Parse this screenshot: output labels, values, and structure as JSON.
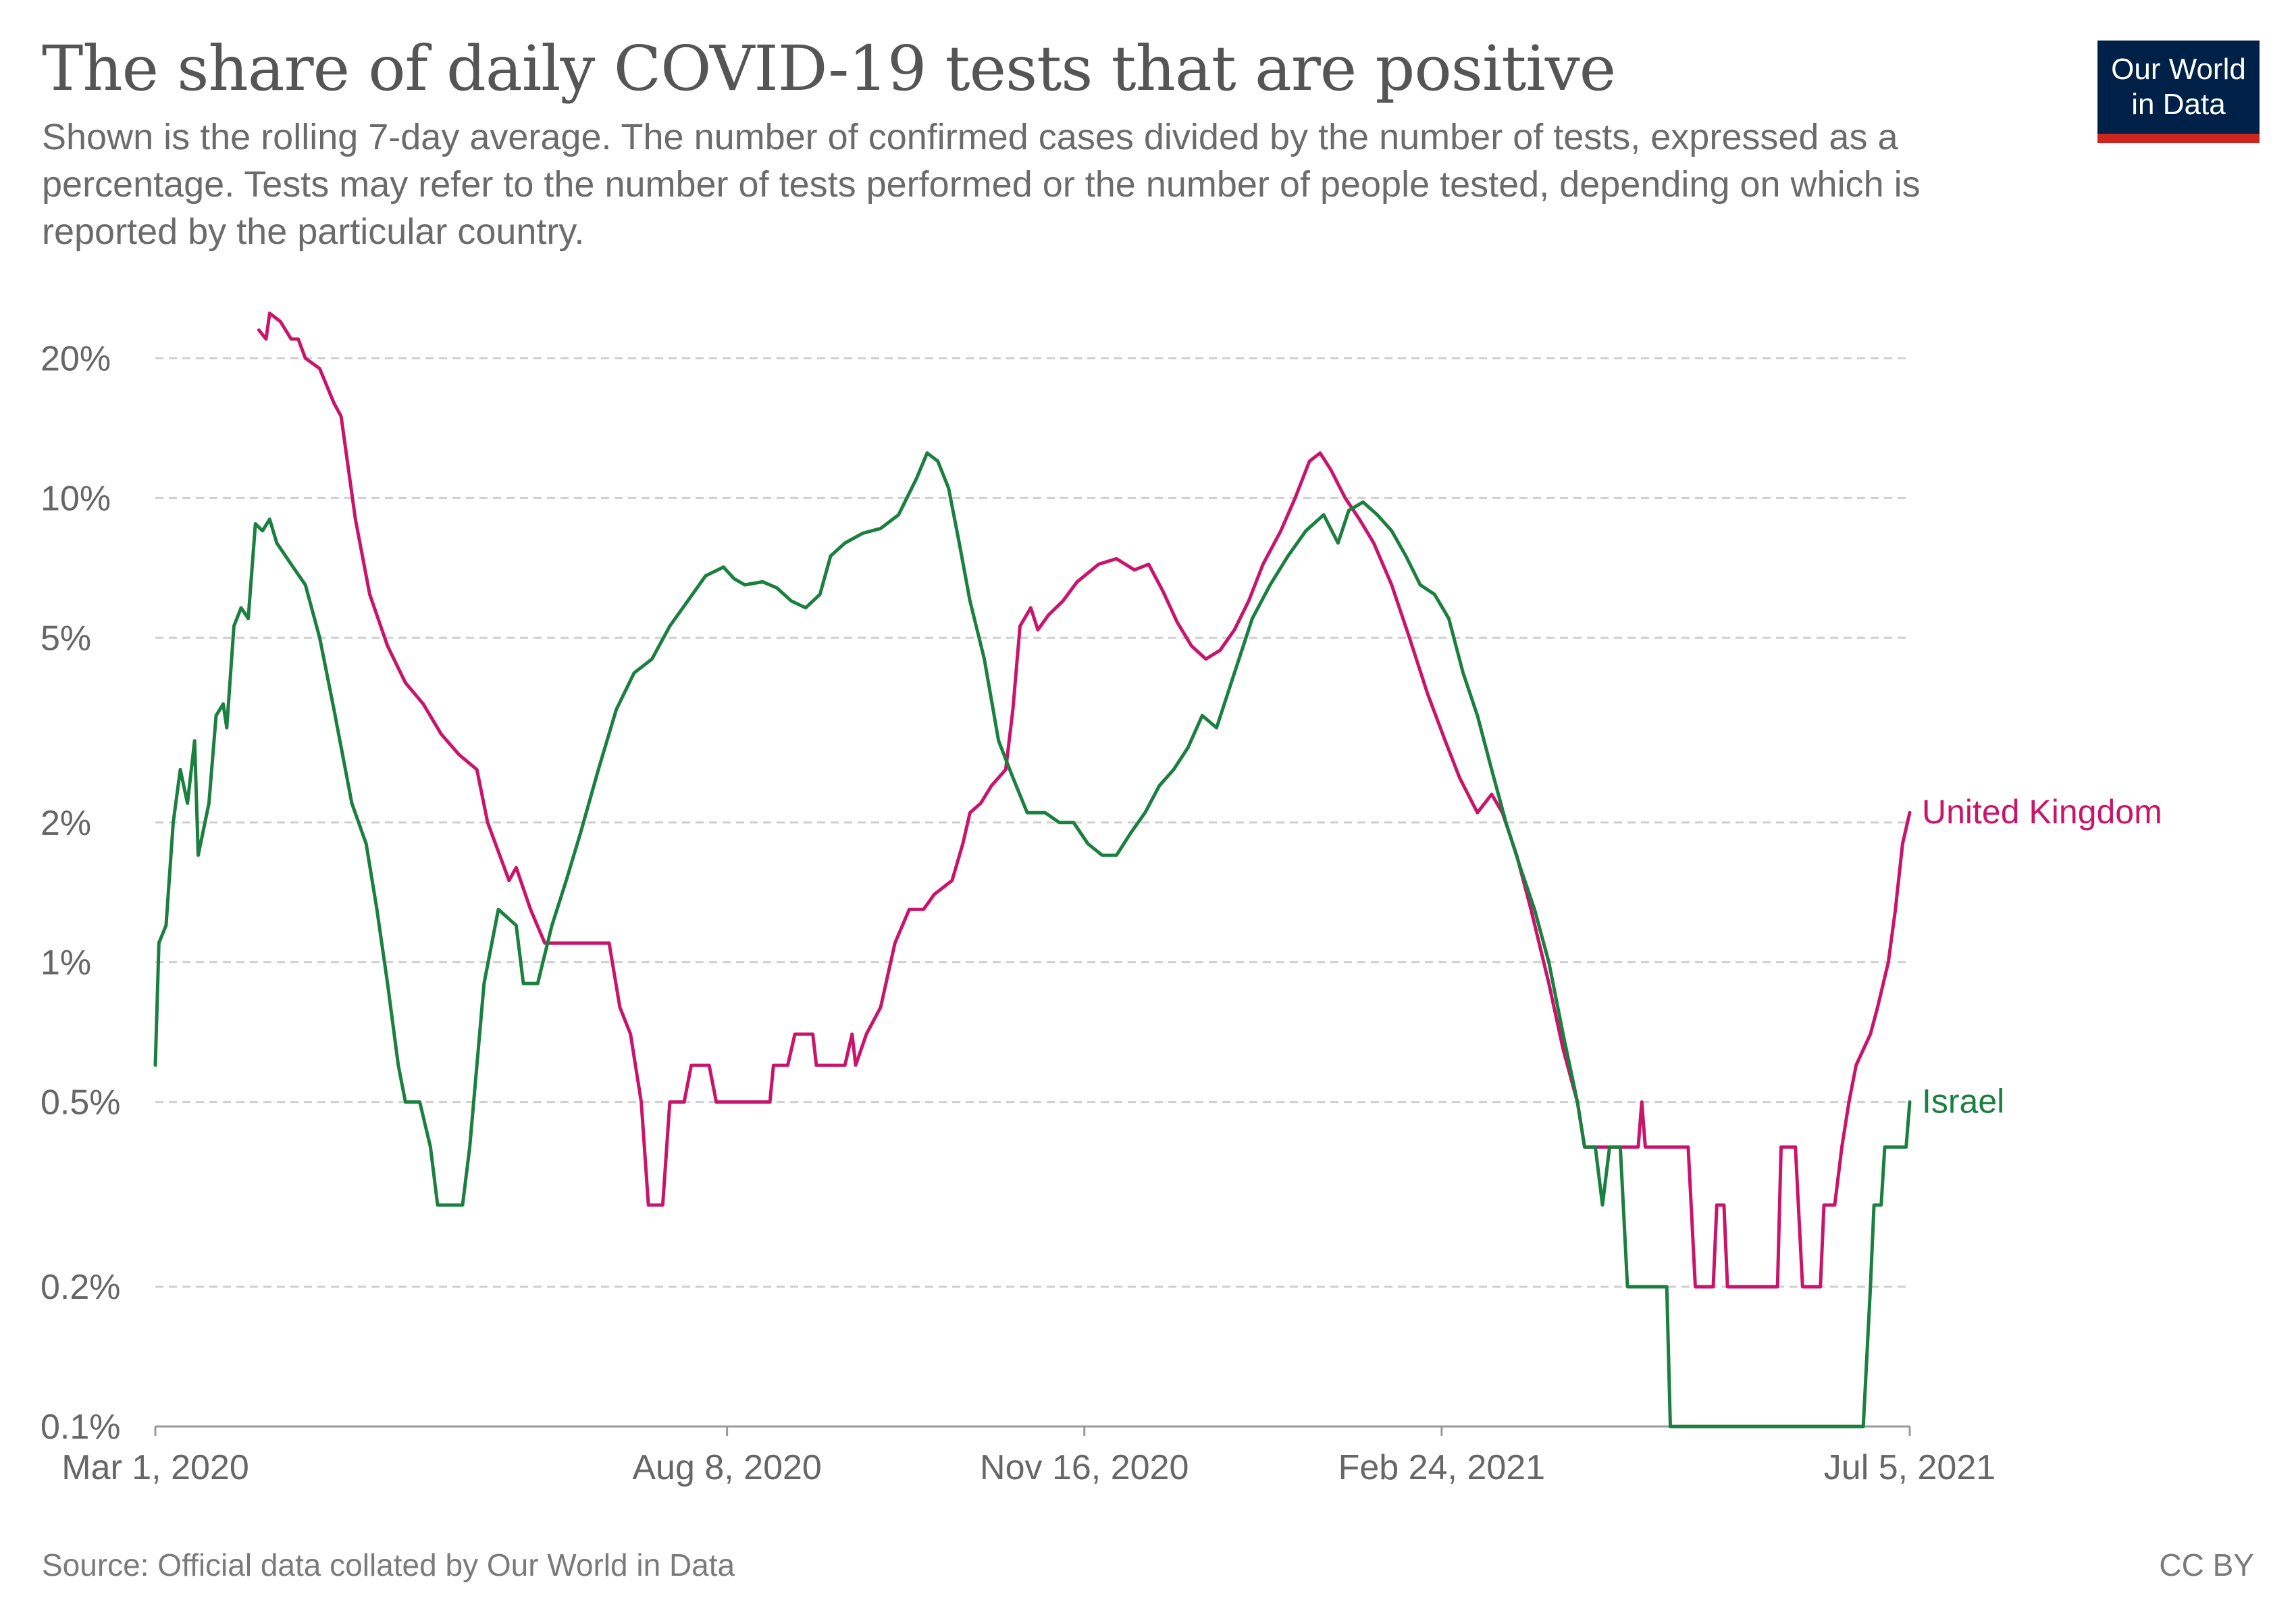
{
  "header": {
    "title": "The share of daily COVID-19 tests that are positive",
    "subtitle": "Shown is the rolling 7-day average. The number of confirmed cases divided by the number of tests, expressed as a percentage. Tests may refer to the number of tests performed or the number of people tested, depending on which is reported by the particular country.",
    "logo_line1": "Our World",
    "logo_line2": "in Data"
  },
  "footer": {
    "source": "Source: Official data collated by Our World in Data",
    "license": "CC BY"
  },
  "colors": {
    "united_kingdom": "#c8156b",
    "israel": "#1a7f3f",
    "grid": "#cfcfcf",
    "axis_text": "#666666",
    "logo_bg": "#002147",
    "logo_accent": "#ce261e"
  },
  "chart_data": {
    "type": "line",
    "title": "The share of daily COVID-19 tests that are positive",
    "xlabel": "",
    "ylabel": "",
    "y_scale": "log",
    "ylim": [
      0.1,
      28
    ],
    "xlim": [
      "2020-03-01",
      "2021-07-05"
    ],
    "y_ticks": [
      0.1,
      0.2,
      0.5,
      1,
      2,
      5,
      10,
      20
    ],
    "y_tick_labels": [
      "0.1%",
      "0.2%",
      "0.5%",
      "1%",
      "2%",
      "5%",
      "10%",
      "20%"
    ],
    "x_ticks": [
      "2020-03-01",
      "2020-08-08",
      "2020-11-16",
      "2021-02-24",
      "2021-07-05"
    ],
    "x_tick_labels": [
      "Mar 1, 2020",
      "Aug 8, 2020",
      "Nov 16, 2020",
      "Feb 24, 2021",
      "Jul 5, 2021"
    ],
    "grid": true,
    "legend": "inline labels at line ends",
    "series": [
      {
        "name": "United Kingdom",
        "color": "#c8156b",
        "points": [
          [
            "2020-03-30",
            23
          ],
          [
            "2020-04-01",
            22
          ],
          [
            "2020-04-02",
            25
          ],
          [
            "2020-04-05",
            24
          ],
          [
            "2020-04-08",
            22
          ],
          [
            "2020-04-10",
            22
          ],
          [
            "2020-04-12",
            20
          ],
          [
            "2020-04-16",
            19
          ],
          [
            "2020-04-20",
            16
          ],
          [
            "2020-04-22",
            15
          ],
          [
            "2020-04-26",
            9
          ],
          [
            "2020-04-30",
            6.2
          ],
          [
            "2020-05-05",
            4.8
          ],
          [
            "2020-05-10",
            4
          ],
          [
            "2020-05-15",
            3.6
          ],
          [
            "2020-05-20",
            3.1
          ],
          [
            "2020-05-25",
            2.8
          ],
          [
            "2020-05-30",
            2.6
          ],
          [
            "2020-06-02",
            2
          ],
          [
            "2020-06-08",
            1.5
          ],
          [
            "2020-06-10",
            1.6
          ],
          [
            "2020-06-14",
            1.3
          ],
          [
            "2020-06-18",
            1.1
          ],
          [
            "2020-06-22",
            1.1
          ],
          [
            "2020-06-30",
            1.1
          ],
          [
            "2020-07-06",
            1.1
          ],
          [
            "2020-07-09",
            0.8
          ],
          [
            "2020-07-12",
            0.7
          ],
          [
            "2020-07-15",
            0.5
          ],
          [
            "2020-07-17",
            0.3
          ],
          [
            "2020-07-21",
            0.3
          ],
          [
            "2020-07-23",
            0.5
          ],
          [
            "2020-07-27",
            0.5
          ],
          [
            "2020-07-29",
            0.6
          ],
          [
            "2020-08-03",
            0.6
          ],
          [
            "2020-08-05",
            0.5
          ],
          [
            "2020-08-20",
            0.5
          ],
          [
            "2020-08-21",
            0.6
          ],
          [
            "2020-08-25",
            0.6
          ],
          [
            "2020-08-27",
            0.7
          ],
          [
            "2020-09-01",
            0.7
          ],
          [
            "2020-09-02",
            0.6
          ],
          [
            "2020-09-10",
            0.6
          ],
          [
            "2020-09-12",
            0.7
          ],
          [
            "2020-09-13",
            0.6
          ],
          [
            "2020-09-16",
            0.7
          ],
          [
            "2020-09-20",
            0.8
          ],
          [
            "2020-09-24",
            1.1
          ],
          [
            "2020-09-28",
            1.3
          ],
          [
            "2020-10-02",
            1.3
          ],
          [
            "2020-10-05",
            1.4
          ],
          [
            "2020-10-10",
            1.5
          ],
          [
            "2020-10-13",
            1.8
          ],
          [
            "2020-10-15",
            2.1
          ],
          [
            "2020-10-18",
            2.2
          ],
          [
            "2020-10-21",
            2.4
          ],
          [
            "2020-10-25",
            2.6
          ],
          [
            "2020-10-27",
            3.5
          ],
          [
            "2020-10-29",
            5.3
          ],
          [
            "2020-11-01",
            5.8
          ],
          [
            "2020-11-03",
            5.2
          ],
          [
            "2020-11-06",
            5.6
          ],
          [
            "2020-11-10",
            6
          ],
          [
            "2020-11-14",
            6.6
          ],
          [
            "2020-11-20",
            7.2
          ],
          [
            "2020-11-25",
            7.4
          ],
          [
            "2020-11-30",
            7
          ],
          [
            "2020-12-04",
            7.2
          ],
          [
            "2020-12-08",
            6.3
          ],
          [
            "2020-12-12",
            5.4
          ],
          [
            "2020-12-16",
            4.8
          ],
          [
            "2020-12-20",
            4.5
          ],
          [
            "2020-12-24",
            4.7
          ],
          [
            "2020-12-28",
            5.2
          ],
          [
            "2021-01-01",
            6
          ],
          [
            "2021-01-05",
            7.2
          ],
          [
            "2021-01-10",
            8.5
          ],
          [
            "2021-01-14",
            10
          ],
          [
            "2021-01-18",
            12
          ],
          [
            "2021-01-21",
            12.5
          ],
          [
            "2021-01-24",
            11.5
          ],
          [
            "2021-01-28",
            10
          ],
          [
            "2021-02-01",
            9
          ],
          [
            "2021-02-05",
            8
          ],
          [
            "2021-02-10",
            6.5
          ],
          [
            "2021-02-15",
            5
          ],
          [
            "2021-02-20",
            3.8
          ],
          [
            "2021-02-25",
            3
          ],
          [
            "2021-03-01",
            2.5
          ],
          [
            "2021-03-06",
            2.1
          ],
          [
            "2021-03-10",
            2.3
          ],
          [
            "2021-03-13",
            2.1
          ],
          [
            "2021-03-17",
            1.7
          ],
          [
            "2021-03-21",
            1.3
          ],
          [
            "2021-03-26",
            0.9
          ],
          [
            "2021-03-30",
            0.65
          ],
          [
            "2021-04-03",
            0.5
          ],
          [
            "2021-04-05",
            0.4
          ],
          [
            "2021-04-20",
            0.4
          ],
          [
            "2021-04-21",
            0.5
          ],
          [
            "2021-04-22",
            0.4
          ],
          [
            "2021-05-04",
            0.4
          ],
          [
            "2021-05-06",
            0.2
          ],
          [
            "2021-05-11",
            0.2
          ],
          [
            "2021-05-12",
            0.3
          ],
          [
            "2021-05-14",
            0.3
          ],
          [
            "2021-05-15",
            0.2
          ],
          [
            "2021-05-29",
            0.2
          ],
          [
            "2021-05-30",
            0.4
          ],
          [
            "2021-06-03",
            0.4
          ],
          [
            "2021-06-05",
            0.2
          ],
          [
            "2021-06-10",
            0.2
          ],
          [
            "2021-06-11",
            0.3
          ],
          [
            "2021-06-14",
            0.3
          ],
          [
            "2021-06-16",
            0.4
          ],
          [
            "2021-06-18",
            0.5
          ],
          [
            "2021-06-20",
            0.6
          ],
          [
            "2021-06-24",
            0.7
          ],
          [
            "2021-06-26",
            0.8
          ],
          [
            "2021-06-29",
            1
          ],
          [
            "2021-07-01",
            1.3
          ],
          [
            "2021-07-03",
            1.8
          ],
          [
            "2021-07-05",
            2.1
          ]
        ]
      },
      {
        "name": "Israel",
        "color": "#1a7f3f",
        "points": [
          [
            "2020-03-01",
            0.6
          ],
          [
            "2020-03-02",
            1.1
          ],
          [
            "2020-03-04",
            1.2
          ],
          [
            "2020-03-06",
            2
          ],
          [
            "2020-03-08",
            2.6
          ],
          [
            "2020-03-10",
            2.2
          ],
          [
            "2020-03-12",
            3
          ],
          [
            "2020-03-13",
            1.7
          ],
          [
            "2020-03-16",
            2.2
          ],
          [
            "2020-03-18",
            3.4
          ],
          [
            "2020-03-20",
            3.6
          ],
          [
            "2020-03-21",
            3.2
          ],
          [
            "2020-03-23",
            5.3
          ],
          [
            "2020-03-25",
            5.8
          ],
          [
            "2020-03-27",
            5.5
          ],
          [
            "2020-03-29",
            8.8
          ],
          [
            "2020-03-31",
            8.5
          ],
          [
            "2020-04-02",
            9
          ],
          [
            "2020-04-04",
            8
          ],
          [
            "2020-04-08",
            7.2
          ],
          [
            "2020-04-12",
            6.5
          ],
          [
            "2020-04-16",
            5
          ],
          [
            "2020-04-20",
            3.5
          ],
          [
            "2020-04-25",
            2.2
          ],
          [
            "2020-04-29",
            1.8
          ],
          [
            "2020-05-02",
            1.3
          ],
          [
            "2020-05-05",
            0.9
          ],
          [
            "2020-05-08",
            0.6
          ],
          [
            "2020-05-10",
            0.5
          ],
          [
            "2020-05-14",
            0.5
          ],
          [
            "2020-05-17",
            0.4
          ],
          [
            "2020-05-19",
            0.3
          ],
          [
            "2020-05-26",
            0.3
          ],
          [
            "2020-05-28",
            0.4
          ],
          [
            "2020-06-01",
            0.9
          ],
          [
            "2020-06-05",
            1.3
          ],
          [
            "2020-06-10",
            1.2
          ],
          [
            "2020-06-12",
            0.9
          ],
          [
            "2020-06-16",
            0.9
          ],
          [
            "2020-06-20",
            1.2
          ],
          [
            "2020-06-24",
            1.5
          ],
          [
            "2020-06-28",
            1.9
          ],
          [
            "2020-07-03",
            2.6
          ],
          [
            "2020-07-08",
            3.5
          ],
          [
            "2020-07-13",
            4.2
          ],
          [
            "2020-07-18",
            4.5
          ],
          [
            "2020-07-23",
            5.3
          ],
          [
            "2020-07-28",
            6
          ],
          [
            "2020-08-02",
            6.8
          ],
          [
            "2020-08-07",
            7.1
          ],
          [
            "2020-08-10",
            6.7
          ],
          [
            "2020-08-13",
            6.5
          ],
          [
            "2020-08-18",
            6.6
          ],
          [
            "2020-08-22",
            6.4
          ],
          [
            "2020-08-26",
            6
          ],
          [
            "2020-08-30",
            5.8
          ],
          [
            "2020-09-03",
            6.2
          ],
          [
            "2020-09-06",
            7.5
          ],
          [
            "2020-09-10",
            8
          ],
          [
            "2020-09-15",
            8.4
          ],
          [
            "2020-09-20",
            8.6
          ],
          [
            "2020-09-25",
            9.2
          ],
          [
            "2020-09-30",
            11
          ],
          [
            "2020-10-03",
            12.5
          ],
          [
            "2020-10-06",
            12
          ],
          [
            "2020-10-09",
            10.5
          ],
          [
            "2020-10-12",
            8
          ],
          [
            "2020-10-15",
            6
          ],
          [
            "2020-10-19",
            4.5
          ],
          [
            "2020-10-23",
            3
          ],
          [
            "2020-10-27",
            2.5
          ],
          [
            "2020-10-31",
            2.1
          ],
          [
            "2020-11-05",
            2.1
          ],
          [
            "2020-11-09",
            2
          ],
          [
            "2020-11-13",
            2
          ],
          [
            "2020-11-17",
            1.8
          ],
          [
            "2020-11-21",
            1.7
          ],
          [
            "2020-11-25",
            1.7
          ],
          [
            "2020-11-29",
            1.9
          ],
          [
            "2020-12-03",
            2.1
          ],
          [
            "2020-12-07",
            2.4
          ],
          [
            "2020-12-11",
            2.6
          ],
          [
            "2020-12-15",
            2.9
          ],
          [
            "2020-12-19",
            3.4
          ],
          [
            "2020-12-23",
            3.2
          ],
          [
            "2020-12-28",
            4.2
          ],
          [
            "2021-01-02",
            5.5
          ],
          [
            "2021-01-07",
            6.5
          ],
          [
            "2021-01-12",
            7.5
          ],
          [
            "2021-01-17",
            8.5
          ],
          [
            "2021-01-22",
            9.2
          ],
          [
            "2021-01-26",
            8
          ],
          [
            "2021-01-29",
            9.4
          ],
          [
            "2021-02-02",
            9.8
          ],
          [
            "2021-02-06",
            9.2
          ],
          [
            "2021-02-10",
            8.5
          ],
          [
            "2021-02-14",
            7.5
          ],
          [
            "2021-02-18",
            6.5
          ],
          [
            "2021-02-22",
            6.2
          ],
          [
            "2021-02-26",
            5.5
          ],
          [
            "2021-03-02",
            4.2
          ],
          [
            "2021-03-06",
            3.4
          ],
          [
            "2021-03-10",
            2.6
          ],
          [
            "2021-03-14",
            2
          ],
          [
            "2021-03-18",
            1.6
          ],
          [
            "2021-03-22",
            1.3
          ],
          [
            "2021-03-26",
            1
          ],
          [
            "2021-03-30",
            0.7
          ],
          [
            "2021-04-03",
            0.5
          ],
          [
            "2021-04-05",
            0.4
          ],
          [
            "2021-04-08",
            0.4
          ],
          [
            "2021-04-10",
            0.3
          ],
          [
            "2021-04-12",
            0.4
          ],
          [
            "2021-04-15",
            0.4
          ],
          [
            "2021-04-17",
            0.2
          ],
          [
            "2021-04-28",
            0.2
          ],
          [
            "2021-04-29",
            0.1
          ],
          [
            "2021-06-22",
            0.1
          ],
          [
            "2021-06-24",
            0.2
          ],
          [
            "2021-06-25",
            0.3
          ],
          [
            "2021-06-27",
            0.3
          ],
          [
            "2021-06-28",
            0.4
          ],
          [
            "2021-07-04",
            0.4
          ],
          [
            "2021-07-05",
            0.5
          ]
        ]
      }
    ]
  }
}
